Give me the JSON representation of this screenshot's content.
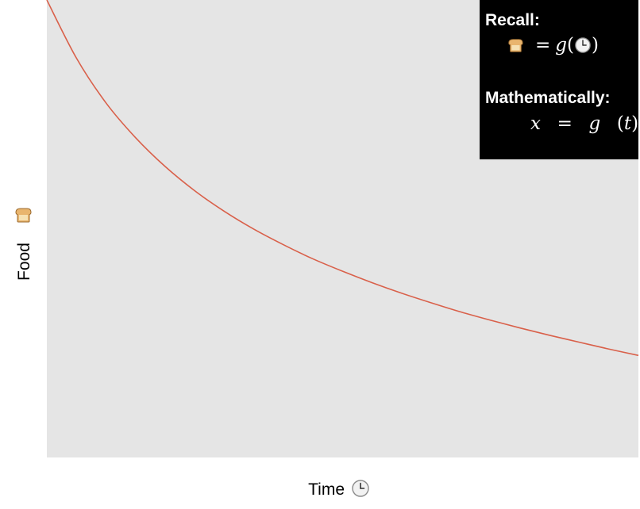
{
  "chart_data": {
    "type": "line",
    "xlabel": "Time",
    "ylabel": "Food",
    "xlabel_icon": "clock-icon",
    "ylabel_icon": "bread-icon",
    "series": [
      {
        "x": [
          0,
          0.05,
          0.1,
          0.15,
          0.2,
          0.25,
          0.3,
          0.35,
          0.4,
          0.45,
          0.5,
          0.55,
          0.6,
          0.65,
          0.7,
          0.75,
          0.8,
          0.85,
          0.9,
          0.95,
          1.0
        ],
        "y": [
          1.0,
          0.873,
          0.775,
          0.699,
          0.636,
          0.583,
          0.538,
          0.499,
          0.465,
          0.434,
          0.407,
          0.382,
          0.359,
          0.338,
          0.318,
          0.3,
          0.283,
          0.267,
          0.252,
          0.237,
          0.223
        ]
      }
    ],
    "xlim": [
      0,
      1
    ],
    "ylim": [
      0,
      1.0
    ],
    "grid": false,
    "background": "#e5e5e5",
    "line_color": "#d9604a"
  },
  "callout": {
    "recall_title": "Recall:",
    "recall_equals": "=",
    "recall_func": "g",
    "recall_open": "(",
    "recall_close": ")",
    "math_title": "Mathematically:",
    "math_var": "x",
    "math_equals": "=",
    "math_func": "g",
    "math_arg_open": "(",
    "math_arg": "t",
    "math_arg_close": ")",
    "background": "#000000",
    "text_color": "#ffffff"
  }
}
